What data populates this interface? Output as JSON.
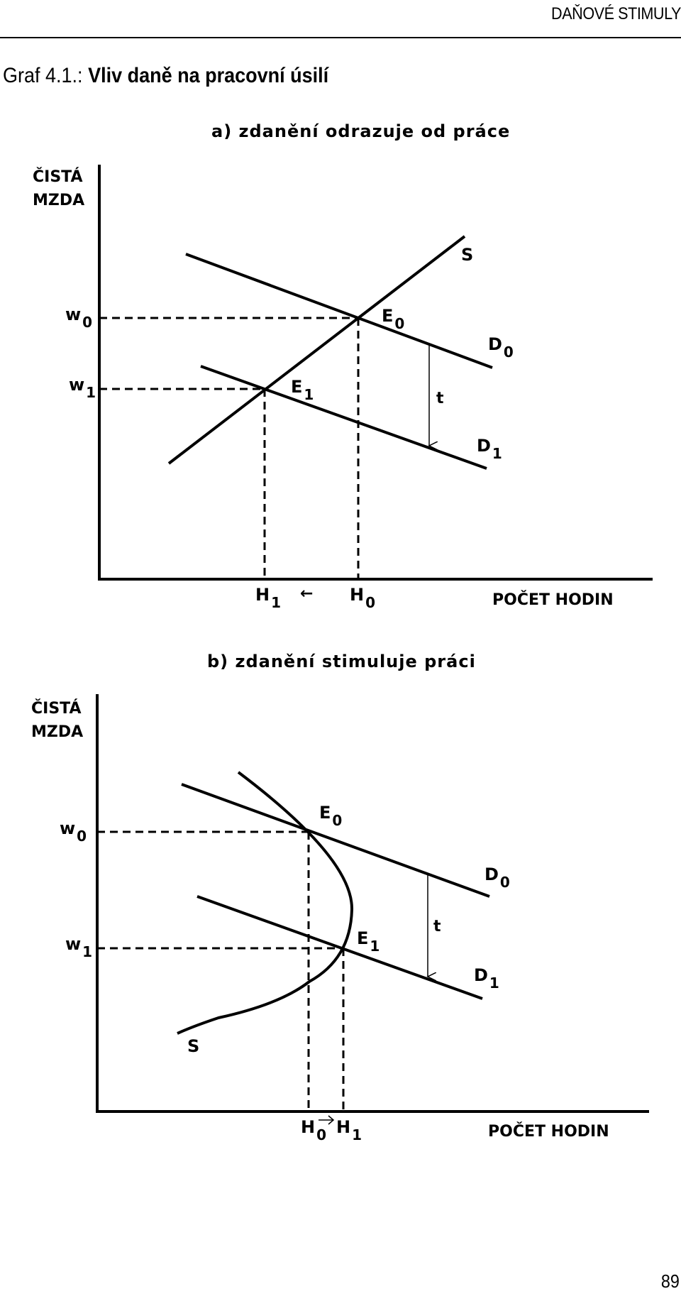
{
  "header": {
    "running_head": "DAŇOVÉ STIMULY"
  },
  "figure": {
    "number": "Graf 4.1.:",
    "title": "Vliv daně na pracovní úsilí"
  },
  "panel_a": {
    "title": "a) zdanění odrazuje od práce",
    "y_axis_label": [
      "ČISTÁ",
      "MZDA"
    ],
    "x_axis_label": "POČET HODIN",
    "w0": {
      "main": "w",
      "sub": "0"
    },
    "w1": {
      "main": "w",
      "sub": "1"
    },
    "h1": {
      "main": "H",
      "sub": "1"
    },
    "h0": {
      "main": "H",
      "sub": "0"
    },
    "e0": {
      "main": "E",
      "sub": "0"
    },
    "e1": {
      "main": "E",
      "sub": "1"
    },
    "d0": {
      "main": "D",
      "sub": "0"
    },
    "d1": {
      "main": "D",
      "sub": "1"
    },
    "s": "S",
    "t": "t",
    "shift_arrow": "←"
  },
  "panel_b": {
    "title": "b) zdanění stimuluje práci",
    "y_axis_label": [
      "ČISTÁ",
      "MZDA"
    ],
    "x_axis_label": "POČET HODIN",
    "w0": {
      "main": "w",
      "sub": "0"
    },
    "w1": {
      "main": "w",
      "sub": "1"
    },
    "h0": {
      "main": "H",
      "sub": "0"
    },
    "h1": {
      "main": "H",
      "sub": "1"
    },
    "e0": {
      "main": "E",
      "sub": "0"
    },
    "e1": {
      "main": "E",
      "sub": "1"
    },
    "d0": {
      "main": "D",
      "sub": "0"
    },
    "d1": {
      "main": "D",
      "sub": "1"
    },
    "s": "S",
    "t": "t"
  },
  "page": {
    "number": "89"
  }
}
